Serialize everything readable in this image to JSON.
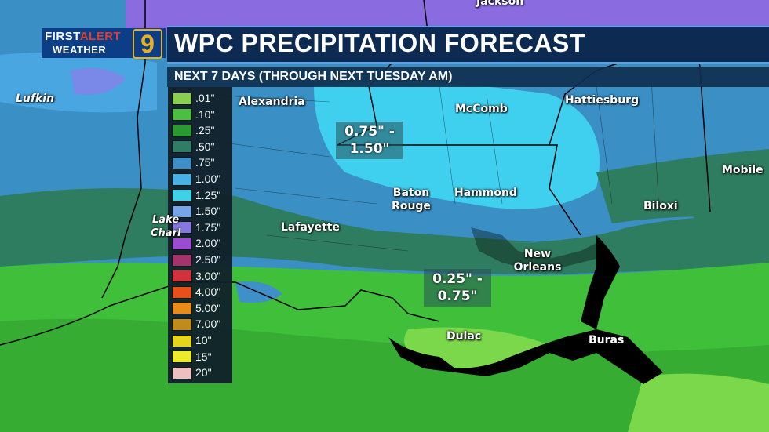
{
  "title": "WPC PRECIPITATION FORECAST",
  "subtitle": "NEXT 7 DAYS (THROUGH NEXT TUESDAY AM)",
  "logo": {
    "line1_a": "FIRST",
    "line1_b": "ALERT",
    "line2": "WEATHER",
    "number": "9"
  },
  "legend": [
    {
      "label": ".01\"",
      "color": "#8fd44a"
    },
    {
      "label": ".10\"",
      "color": "#4cc23a"
    },
    {
      "label": ".25\"",
      "color": "#2a9a2a"
    },
    {
      "label": ".50\"",
      "color": "#2f7d60"
    },
    {
      "label": ".75\"",
      "color": "#3f8fc8"
    },
    {
      "label": "1.00\"",
      "color": "#4ab2e8"
    },
    {
      "label": "1.25\"",
      "color": "#3fd6f0"
    },
    {
      "label": "1.50\"",
      "color": "#7aa8f0"
    },
    {
      "label": "1.75\"",
      "color": "#8a78e8"
    },
    {
      "label": "2.00\"",
      "color": "#a24ad8"
    },
    {
      "label": "2.50\"",
      "color": "#a8306a"
    },
    {
      "label": "3.00\"",
      "color": "#d82a3a"
    },
    {
      "label": "4.00\"",
      "color": "#f04a1a"
    },
    {
      "label": "5.00\"",
      "color": "#f08a1a"
    },
    {
      "label": "7.00\"",
      "color": "#c88a1a"
    },
    {
      "label": "10\"",
      "color": "#f0d81a"
    },
    {
      "label": "15\"",
      "color": "#f8f02a"
    },
    {
      "label": "20\"",
      "color": "#f8c0c8"
    }
  ],
  "cities": [
    {
      "id": "jackson",
      "label": "Jackson"
    },
    {
      "id": "lufkin",
      "label": "Lufkin"
    },
    {
      "id": "alexandria",
      "label": "Alexandria"
    },
    {
      "id": "mccomb",
      "label": "McComb"
    },
    {
      "id": "hattiesburg",
      "label": "Hattiesburg"
    },
    {
      "id": "mobile",
      "label": "Mobile"
    },
    {
      "id": "baton-rouge",
      "label": "Baton Rouge"
    },
    {
      "id": "hammond",
      "label": "Hammond"
    },
    {
      "id": "biloxi",
      "label": "Biloxi"
    },
    {
      "id": "lafayette",
      "label": "Lafayette"
    },
    {
      "id": "lake-charles",
      "label": "Lake Charles"
    },
    {
      "id": "new-orleans",
      "label": "New Orleans"
    },
    {
      "id": "dulac",
      "label": "Dulac"
    },
    {
      "id": "buras",
      "label": "Buras"
    }
  ],
  "callouts": [
    {
      "id": "north-range",
      "line1": "0.75\" -",
      "line2": "1.50\""
    },
    {
      "id": "south-range",
      "line1": "0.25\" -",
      "line2": "0.75\""
    }
  ]
}
